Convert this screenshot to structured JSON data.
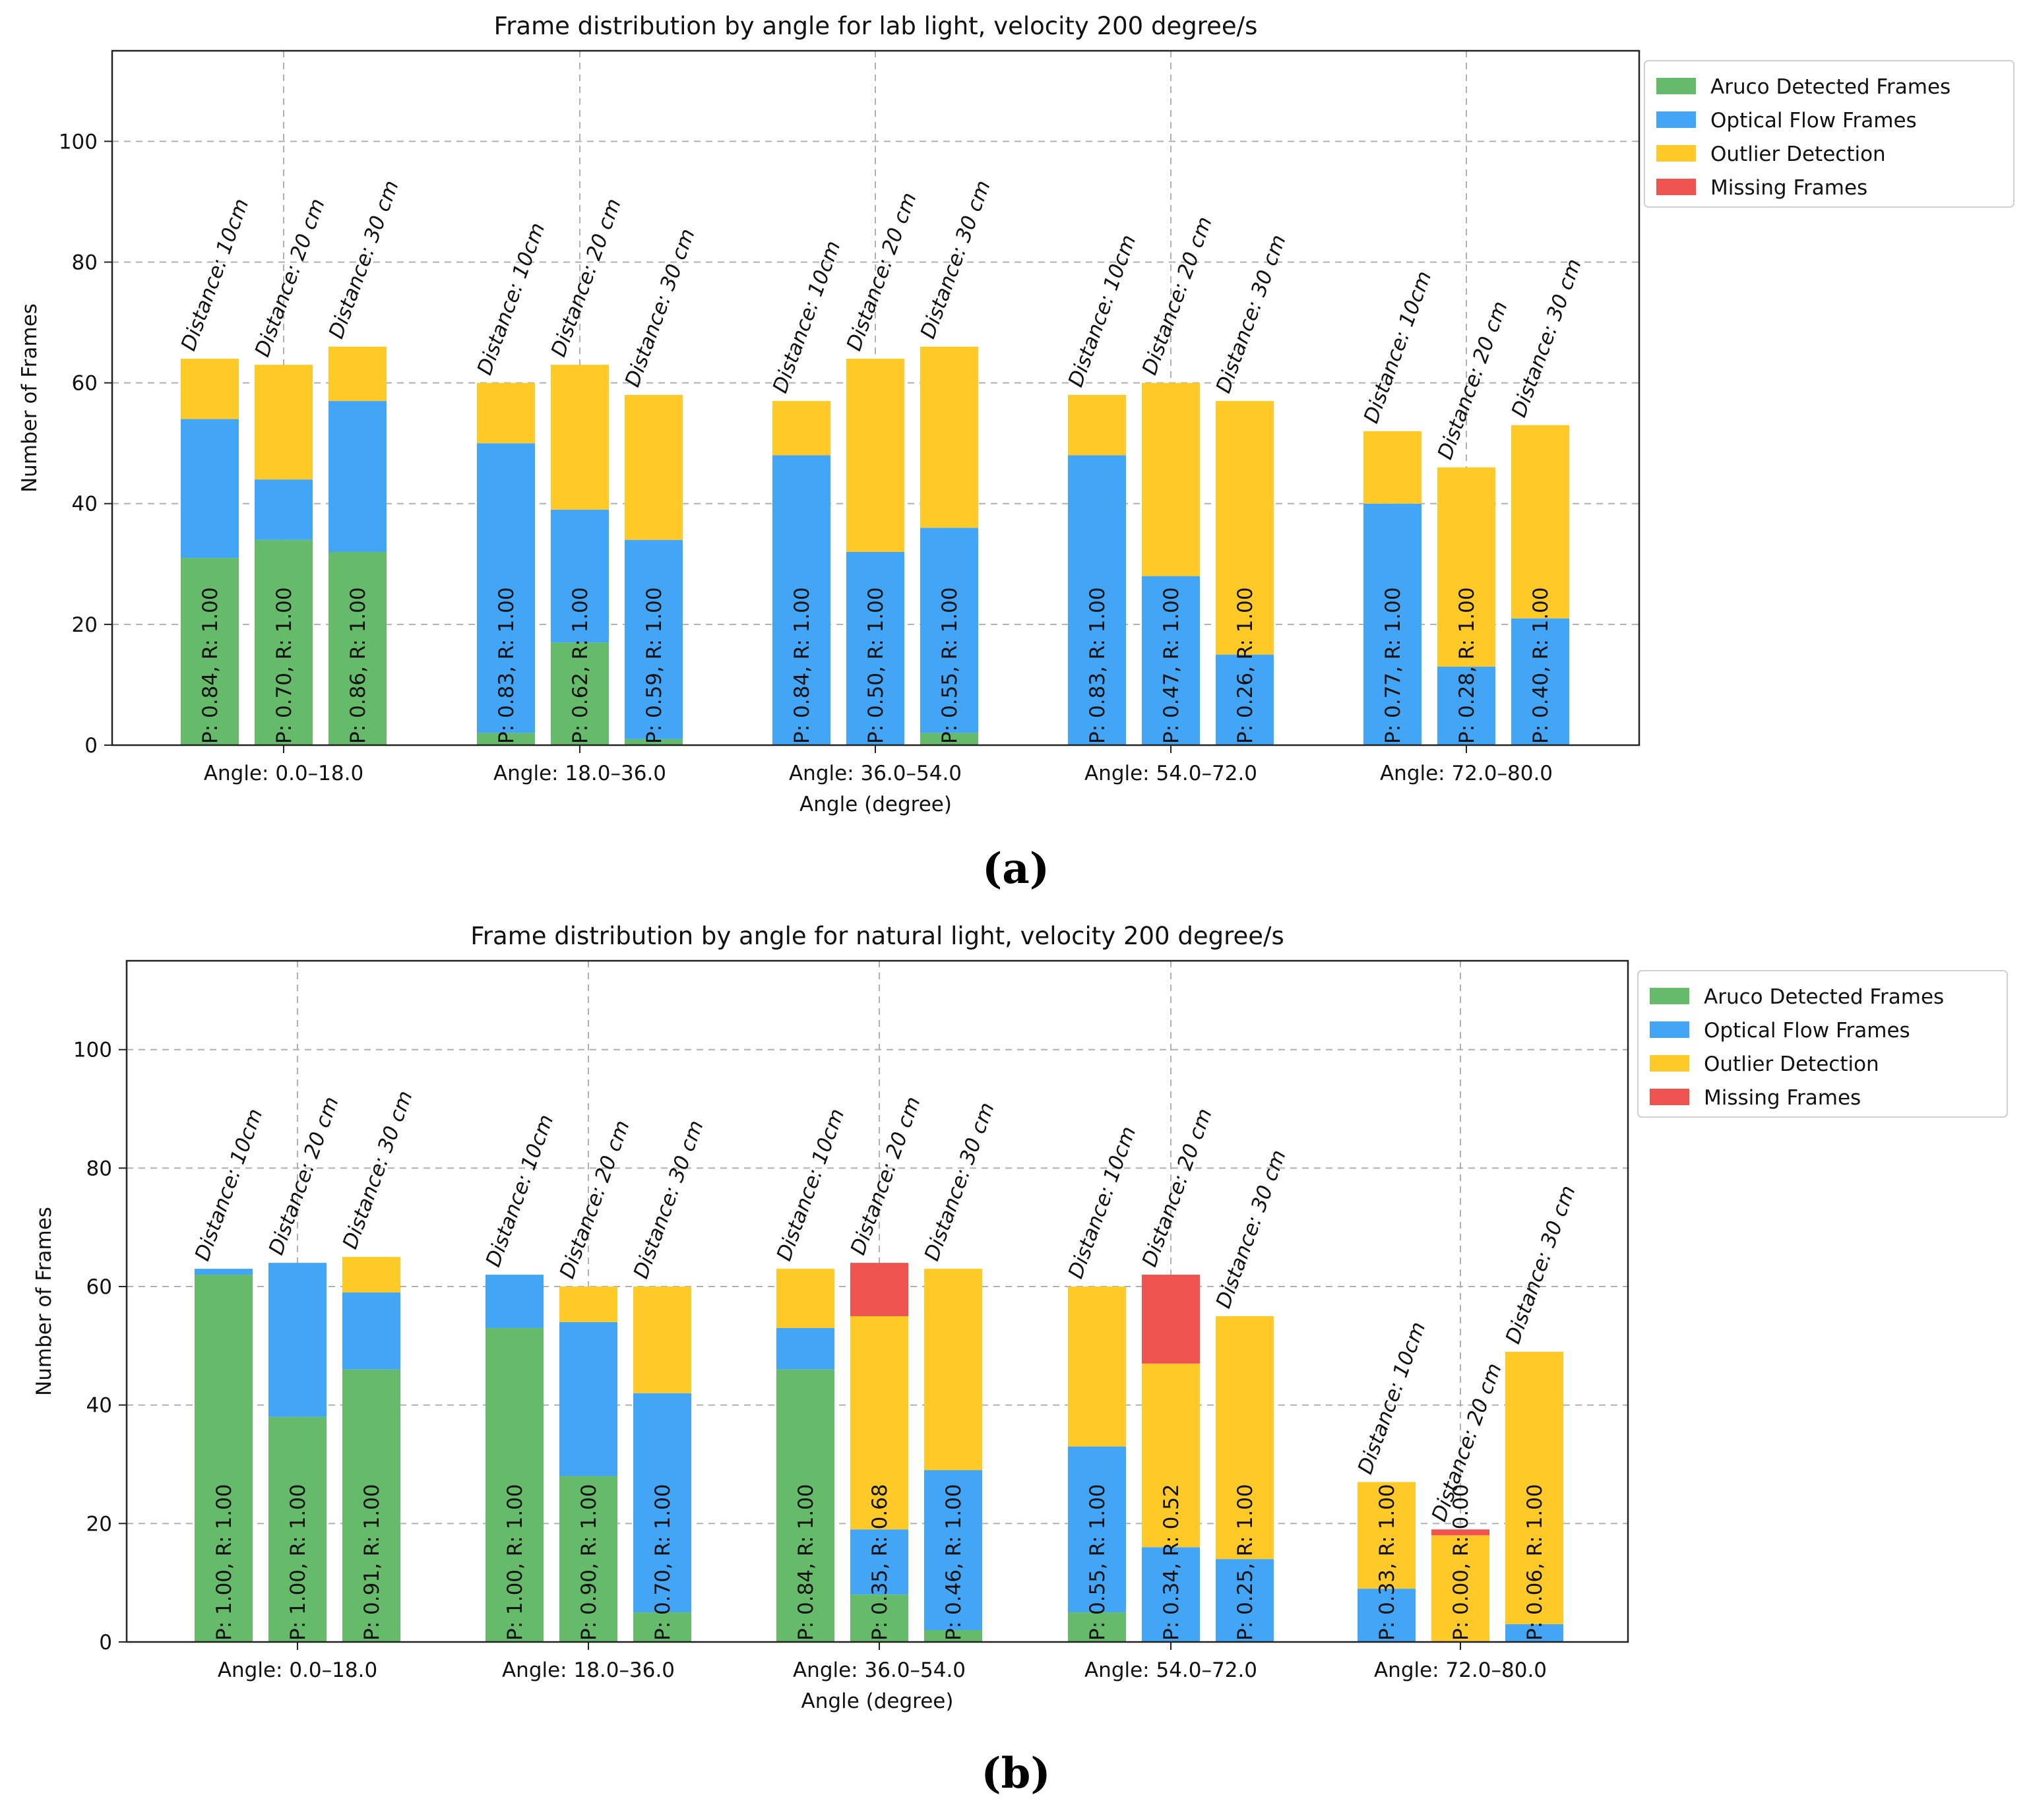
{
  "figure": {
    "panels": [
      "(a)",
      "(b)"
    ]
  },
  "colors": {
    "aruco": "#66BB6A",
    "optical": "#42A5F5",
    "outlier": "#FFCA28",
    "missing": "#EF5350",
    "grid": "#b0b0b0"
  },
  "chart_data": [
    {
      "type": "bar",
      "stacked": true,
      "title": "Frame distribution by angle for lab light, velocity 200 degree/s",
      "xlabel": "Angle (degree)",
      "ylabel": "Number of Frames",
      "ylim": [
        0,
        115
      ],
      "yticks": [
        0,
        20,
        40,
        60,
        80,
        100
      ],
      "grid": true,
      "legend_position": "outside right top",
      "legend": [
        "Aruco Detected Frames",
        "Optical Flow Frames",
        "Outlier Detection",
        "Missing Frames"
      ],
      "categories": [
        "Angle: 0.0–18.0",
        "Angle: 18.0–36.0",
        "Angle: 36.0–54.0",
        "Angle: 54.0–72.0",
        "Angle: 72.0–80.0"
      ],
      "distances": [
        "Distance: 10cm",
        "Distance: 20 cm",
        "Distance: 30 cm"
      ],
      "groups": [
        [
          {
            "aruco": 31,
            "optical": 23,
            "outlier": 10,
            "missing": 0,
            "label": "P: 0.84, R: 1.00"
          },
          {
            "aruco": 34,
            "optical": 10,
            "outlier": 19,
            "missing": 0,
            "label": "P: 0.70, R: 1.00"
          },
          {
            "aruco": 32,
            "optical": 25,
            "outlier": 9,
            "missing": 0,
            "label": "P: 0.86, R: 1.00"
          }
        ],
        [
          {
            "aruco": 2,
            "optical": 48,
            "outlier": 10,
            "missing": 0,
            "label": "P: 0.83, R: 1.00"
          },
          {
            "aruco": 17,
            "optical": 22,
            "outlier": 24,
            "missing": 0,
            "label": "P: 0.62, R: 1.00"
          },
          {
            "aruco": 1,
            "optical": 33,
            "outlier": 24,
            "missing": 0,
            "label": "P: 0.59, R: 1.00"
          }
        ],
        [
          {
            "aruco": 0,
            "optical": 48,
            "outlier": 9,
            "missing": 0,
            "label": "P: 0.84, R: 1.00"
          },
          {
            "aruco": 0,
            "optical": 32,
            "outlier": 32,
            "missing": 0,
            "label": "P: 0.50, R: 1.00"
          },
          {
            "aruco": 2,
            "optical": 34,
            "outlier": 30,
            "missing": 0,
            "label": "P: 0.55, R: 1.00"
          }
        ],
        [
          {
            "aruco": 0,
            "optical": 48,
            "outlier": 10,
            "missing": 0,
            "label": "P: 0.83, R: 1.00"
          },
          {
            "aruco": 0,
            "optical": 28,
            "outlier": 32,
            "missing": 0,
            "label": "P: 0.47, R: 1.00"
          },
          {
            "aruco": 0,
            "optical": 15,
            "outlier": 42,
            "missing": 0,
            "label": "P: 0.26, R: 1.00"
          }
        ],
        [
          {
            "aruco": 0,
            "optical": 40,
            "outlier": 12,
            "missing": 0,
            "label": "P: 0.77, R: 1.00"
          },
          {
            "aruco": 0,
            "optical": 13,
            "outlier": 33,
            "missing": 0,
            "label": "P: 0.28, R: 1.00"
          },
          {
            "aruco": 0,
            "optical": 21,
            "outlier": 32,
            "missing": 0,
            "label": "P: 0.40, R: 1.00"
          }
        ]
      ]
    },
    {
      "type": "bar",
      "stacked": true,
      "title": "Frame distribution by angle for natural light, velocity 200 degree/s",
      "xlabel": "Angle (degree)",
      "ylabel": "Number of Frames",
      "ylim": [
        0,
        115
      ],
      "yticks": [
        0,
        20,
        40,
        60,
        80,
        100
      ],
      "grid": true,
      "legend_position": "outside right top",
      "legend": [
        "Aruco Detected Frames",
        "Optical Flow Frames",
        "Outlier Detection",
        "Missing Frames"
      ],
      "categories": [
        "Angle: 0.0–18.0",
        "Angle: 18.0–36.0",
        "Angle: 36.0–54.0",
        "Angle: 54.0–72.0",
        "Angle: 72.0–80.0"
      ],
      "distances": [
        "Distance: 10cm",
        "Distance: 20 cm",
        "Distance: 30 cm"
      ],
      "groups": [
        [
          {
            "aruco": 62,
            "optical": 1,
            "outlier": 0,
            "missing": 0,
            "label": "P: 1.00, R: 1.00"
          },
          {
            "aruco": 38,
            "optical": 26,
            "outlier": 0,
            "missing": 0,
            "label": "P: 1.00, R: 1.00"
          },
          {
            "aruco": 46,
            "optical": 13,
            "outlier": 6,
            "missing": 0,
            "label": "P: 0.91, R: 1.00"
          }
        ],
        [
          {
            "aruco": 53,
            "optical": 9,
            "outlier": 0,
            "missing": 0,
            "label": "P: 1.00, R: 1.00"
          },
          {
            "aruco": 28,
            "optical": 26,
            "outlier": 6,
            "missing": 0,
            "label": "P: 0.90, R: 1.00"
          },
          {
            "aruco": 5,
            "optical": 37,
            "outlier": 18,
            "missing": 0,
            "label": "P: 0.70, R: 1.00"
          }
        ],
        [
          {
            "aruco": 46,
            "optical": 7,
            "outlier": 10,
            "missing": 0,
            "label": "P: 0.84, R: 1.00"
          },
          {
            "aruco": 8,
            "optical": 11,
            "outlier": 36,
            "missing": 9,
            "label": "P: 0.35, R: 0.68"
          },
          {
            "aruco": 2,
            "optical": 27,
            "outlier": 34,
            "missing": 0,
            "label": "P: 0.46, R: 1.00"
          }
        ],
        [
          {
            "aruco": 5,
            "optical": 28,
            "outlier": 27,
            "missing": 0,
            "label": "P: 0.55, R: 1.00"
          },
          {
            "aruco": 0,
            "optical": 16,
            "outlier": 31,
            "missing": 15,
            "label": "P: 0.34, R: 0.52"
          },
          {
            "aruco": 0,
            "optical": 14,
            "outlier": 41,
            "missing": 0,
            "label": "P: 0.25, R: 1.00"
          }
        ],
        [
          {
            "aruco": 0,
            "optical": 9,
            "outlier": 18,
            "missing": 0,
            "label": "P: 0.33, R: 1.00"
          },
          {
            "aruco": 0,
            "optical": 0,
            "outlier": 18,
            "missing": 1,
            "label": "P: 0.00, R: 0.00"
          },
          {
            "aruco": 0,
            "optical": 3,
            "outlier": 46,
            "missing": 0,
            "label": "P: 0.06, R: 1.00"
          }
        ]
      ]
    }
  ]
}
